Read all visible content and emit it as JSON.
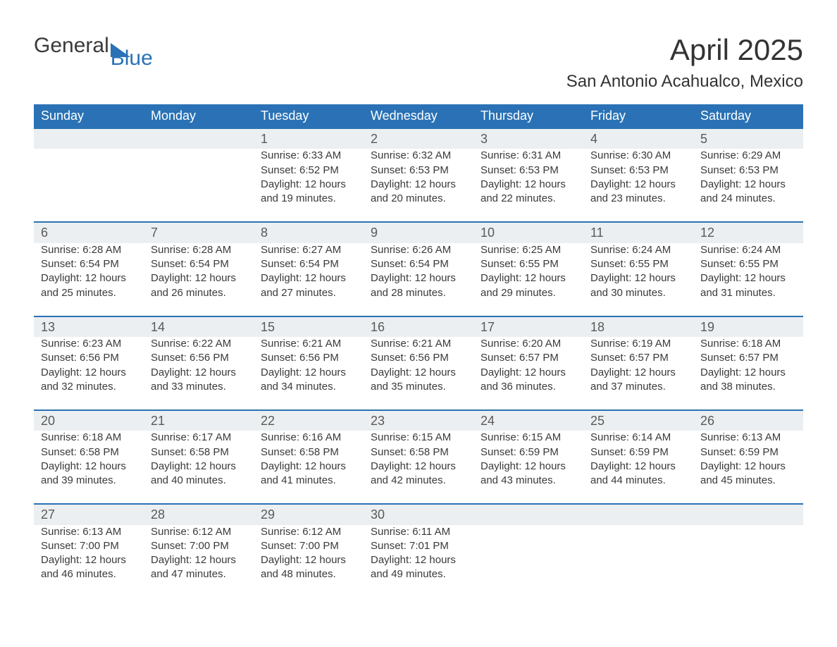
{
  "logo": {
    "text1": "General",
    "text2": "Blue",
    "mark_color": "#2a72b5",
    "text_color": "#3a3a3a"
  },
  "header": {
    "title": "April 2025",
    "subtitle": "San Antonio Acahualco, Mexico"
  },
  "calendar": {
    "header_bg": "#2a72b5",
    "header_text_color": "#ffffff",
    "daynum_bg": "#eceff1",
    "daynum_border": "#2a72b5",
    "body_text_color": "#3a3a3a",
    "dow": [
      "Sunday",
      "Monday",
      "Tuesday",
      "Wednesday",
      "Thursday",
      "Friday",
      "Saturday"
    ],
    "weeks": [
      [
        null,
        null,
        {
          "n": "1",
          "sunrise": "Sunrise: 6:33 AM",
          "sunset": "Sunset: 6:52 PM",
          "daylight": "Daylight: 12 hours and 19 minutes."
        },
        {
          "n": "2",
          "sunrise": "Sunrise: 6:32 AM",
          "sunset": "Sunset: 6:53 PM",
          "daylight": "Daylight: 12 hours and 20 minutes."
        },
        {
          "n": "3",
          "sunrise": "Sunrise: 6:31 AM",
          "sunset": "Sunset: 6:53 PM",
          "daylight": "Daylight: 12 hours and 22 minutes."
        },
        {
          "n": "4",
          "sunrise": "Sunrise: 6:30 AM",
          "sunset": "Sunset: 6:53 PM",
          "daylight": "Daylight: 12 hours and 23 minutes."
        },
        {
          "n": "5",
          "sunrise": "Sunrise: 6:29 AM",
          "sunset": "Sunset: 6:53 PM",
          "daylight": "Daylight: 12 hours and 24 minutes."
        }
      ],
      [
        {
          "n": "6",
          "sunrise": "Sunrise: 6:28 AM",
          "sunset": "Sunset: 6:54 PM",
          "daylight": "Daylight: 12 hours and 25 minutes."
        },
        {
          "n": "7",
          "sunrise": "Sunrise: 6:28 AM",
          "sunset": "Sunset: 6:54 PM",
          "daylight": "Daylight: 12 hours and 26 minutes."
        },
        {
          "n": "8",
          "sunrise": "Sunrise: 6:27 AM",
          "sunset": "Sunset: 6:54 PM",
          "daylight": "Daylight: 12 hours and 27 minutes."
        },
        {
          "n": "9",
          "sunrise": "Sunrise: 6:26 AM",
          "sunset": "Sunset: 6:54 PM",
          "daylight": "Daylight: 12 hours and 28 minutes."
        },
        {
          "n": "10",
          "sunrise": "Sunrise: 6:25 AM",
          "sunset": "Sunset: 6:55 PM",
          "daylight": "Daylight: 12 hours and 29 minutes."
        },
        {
          "n": "11",
          "sunrise": "Sunrise: 6:24 AM",
          "sunset": "Sunset: 6:55 PM",
          "daylight": "Daylight: 12 hours and 30 minutes."
        },
        {
          "n": "12",
          "sunrise": "Sunrise: 6:24 AM",
          "sunset": "Sunset: 6:55 PM",
          "daylight": "Daylight: 12 hours and 31 minutes."
        }
      ],
      [
        {
          "n": "13",
          "sunrise": "Sunrise: 6:23 AM",
          "sunset": "Sunset: 6:56 PM",
          "daylight": "Daylight: 12 hours and 32 minutes."
        },
        {
          "n": "14",
          "sunrise": "Sunrise: 6:22 AM",
          "sunset": "Sunset: 6:56 PM",
          "daylight": "Daylight: 12 hours and 33 minutes."
        },
        {
          "n": "15",
          "sunrise": "Sunrise: 6:21 AM",
          "sunset": "Sunset: 6:56 PM",
          "daylight": "Daylight: 12 hours and 34 minutes."
        },
        {
          "n": "16",
          "sunrise": "Sunrise: 6:21 AM",
          "sunset": "Sunset: 6:56 PM",
          "daylight": "Daylight: 12 hours and 35 minutes."
        },
        {
          "n": "17",
          "sunrise": "Sunrise: 6:20 AM",
          "sunset": "Sunset: 6:57 PM",
          "daylight": "Daylight: 12 hours and 36 minutes."
        },
        {
          "n": "18",
          "sunrise": "Sunrise: 6:19 AM",
          "sunset": "Sunset: 6:57 PM",
          "daylight": "Daylight: 12 hours and 37 minutes."
        },
        {
          "n": "19",
          "sunrise": "Sunrise: 6:18 AM",
          "sunset": "Sunset: 6:57 PM",
          "daylight": "Daylight: 12 hours and 38 minutes."
        }
      ],
      [
        {
          "n": "20",
          "sunrise": "Sunrise: 6:18 AM",
          "sunset": "Sunset: 6:58 PM",
          "daylight": "Daylight: 12 hours and 39 minutes."
        },
        {
          "n": "21",
          "sunrise": "Sunrise: 6:17 AM",
          "sunset": "Sunset: 6:58 PM",
          "daylight": "Daylight: 12 hours and 40 minutes."
        },
        {
          "n": "22",
          "sunrise": "Sunrise: 6:16 AM",
          "sunset": "Sunset: 6:58 PM",
          "daylight": "Daylight: 12 hours and 41 minutes."
        },
        {
          "n": "23",
          "sunrise": "Sunrise: 6:15 AM",
          "sunset": "Sunset: 6:58 PM",
          "daylight": "Daylight: 12 hours and 42 minutes."
        },
        {
          "n": "24",
          "sunrise": "Sunrise: 6:15 AM",
          "sunset": "Sunset: 6:59 PM",
          "daylight": "Daylight: 12 hours and 43 minutes."
        },
        {
          "n": "25",
          "sunrise": "Sunrise: 6:14 AM",
          "sunset": "Sunset: 6:59 PM",
          "daylight": "Daylight: 12 hours and 44 minutes."
        },
        {
          "n": "26",
          "sunrise": "Sunrise: 6:13 AM",
          "sunset": "Sunset: 6:59 PM",
          "daylight": "Daylight: 12 hours and 45 minutes."
        }
      ],
      [
        {
          "n": "27",
          "sunrise": "Sunrise: 6:13 AM",
          "sunset": "Sunset: 7:00 PM",
          "daylight": "Daylight: 12 hours and 46 minutes."
        },
        {
          "n": "28",
          "sunrise": "Sunrise: 6:12 AM",
          "sunset": "Sunset: 7:00 PM",
          "daylight": "Daylight: 12 hours and 47 minutes."
        },
        {
          "n": "29",
          "sunrise": "Sunrise: 6:12 AM",
          "sunset": "Sunset: 7:00 PM",
          "daylight": "Daylight: 12 hours and 48 minutes."
        },
        {
          "n": "30",
          "sunrise": "Sunrise: 6:11 AM",
          "sunset": "Sunset: 7:01 PM",
          "daylight": "Daylight: 12 hours and 49 minutes."
        },
        null,
        null,
        null
      ]
    ]
  }
}
